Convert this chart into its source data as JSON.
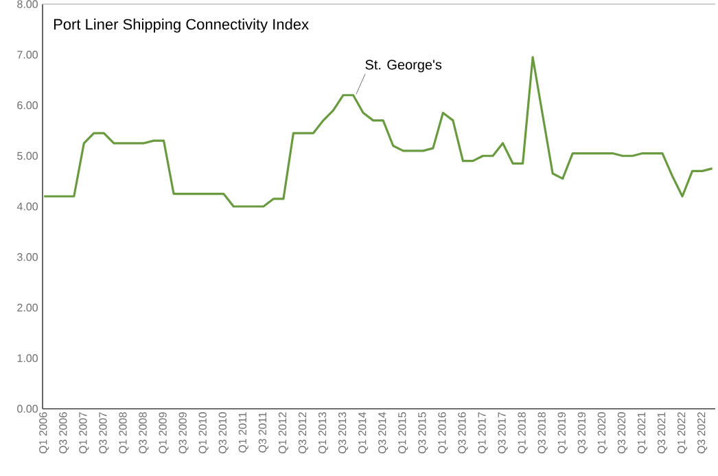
{
  "chart_data": {
    "type": "line",
    "title": "Port Liner Shipping  Connectivity  Index",
    "categories": [
      "Q1 2006",
      null,
      "Q3 2006",
      null,
      "Q1 2007",
      null,
      "Q3 2007",
      null,
      "Q1 2008",
      null,
      "Q3 2008",
      null,
      "Q1 2009",
      null,
      "Q3 2009",
      null,
      "Q1 2010",
      null,
      "Q3 2010",
      null,
      "Q1 2011",
      null,
      "Q3 2011",
      null,
      "Q1 2012",
      null,
      "Q3 2012",
      null,
      "Q1 2013",
      null,
      "Q3 2013",
      null,
      "Q1 2014",
      null,
      "Q3 2014",
      null,
      "Q1 2015",
      null,
      "Q3 2015",
      null,
      "Q1 2016",
      null,
      "Q3 2016",
      null,
      "Q1 2017",
      null,
      "Q3 2017",
      null,
      "Q1 2018",
      null,
      "Q3 2018",
      null,
      "Q1 2019",
      null,
      "Q3 2019",
      null,
      "Q1 2020",
      null,
      "Q3 2020",
      null,
      "Q1 2021",
      null,
      "Q3 2021",
      null,
      "Q1 2022",
      null,
      "Q3 2022",
      null
    ],
    "values": [
      4.2,
      4.2,
      4.2,
      4.2,
      5.25,
      5.45,
      5.45,
      5.25,
      5.25,
      5.25,
      5.25,
      5.3,
      5.3,
      4.25,
      4.25,
      4.25,
      4.25,
      4.25,
      4.25,
      4.0,
      4.0,
      4.0,
      4.0,
      4.15,
      4.15,
      5.45,
      5.45,
      5.45,
      5.7,
      5.9,
      6.2,
      6.2,
      5.85,
      5.7,
      5.7,
      5.2,
      5.1,
      5.1,
      5.1,
      5.15,
      5.85,
      5.7,
      4.9,
      4.9,
      5.0,
      5.0,
      5.25,
      4.85,
      4.85,
      6.95,
      5.8,
      4.65,
      4.55,
      5.05,
      5.05,
      5.05,
      5.05,
      5.05,
      5.0,
      5.0,
      5.05,
      5.05,
      5.05,
      4.6,
      4.2,
      4.7,
      4.7,
      4.75
    ],
    "color": "#6a9a3f",
    "ylim": [
      0,
      8
    ],
    "yticks": [
      {
        "value": 0,
        "label": "0.00"
      },
      {
        "value": 1,
        "label": "1.00"
      },
      {
        "value": 2,
        "label": "2.00"
      },
      {
        "value": 3,
        "label": "3.00"
      },
      {
        "value": 4,
        "label": "4.00"
      },
      {
        "value": 5,
        "label": "5.00"
      },
      {
        "value": 6,
        "label": "6.00"
      },
      {
        "value": 7,
        "label": "7.00"
      },
      {
        "value": 8,
        "label": "8.00"
      }
    ],
    "annotations": [
      {
        "text": "St. George's",
        "x": "Q3 2013",
        "y": 6.2
      }
    ]
  }
}
